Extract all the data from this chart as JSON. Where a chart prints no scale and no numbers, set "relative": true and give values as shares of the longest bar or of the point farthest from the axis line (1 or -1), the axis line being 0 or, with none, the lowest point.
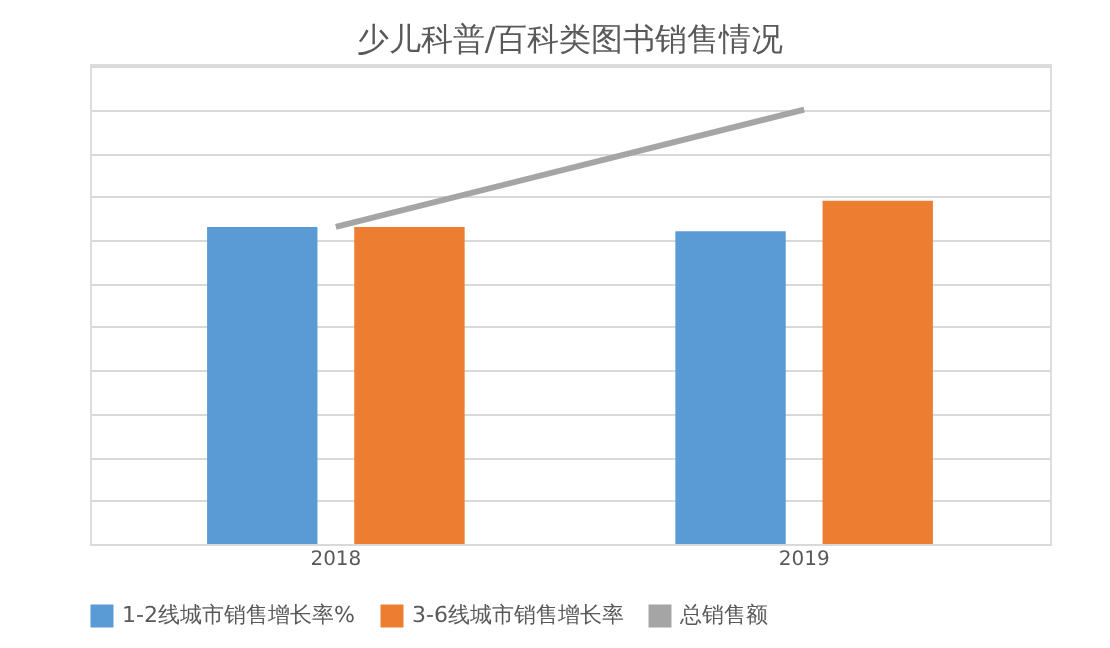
{
  "chart_data": {
    "type": "bar",
    "title": "少儿科普/百科类图书销售情况",
    "categories": [
      "2018",
      "2019"
    ],
    "relative": true,
    "grid": "y",
    "legend": "bottom",
    "series": [
      {
        "name": "1-2线城市销售增长率%",
        "color": "#5b9bd5",
        "values": [
          0.73,
          0.72
        ]
      },
      {
        "name": "3-6线城市销售增长率",
        "color": "#ed7d31",
        "values": [
          0.73,
          0.79
        ]
      },
      {
        "name": "总销售额",
        "color": "#a5a5a5",
        "type": "line",
        "values": [
          0.73,
          1.0
        ]
      }
    ]
  }
}
